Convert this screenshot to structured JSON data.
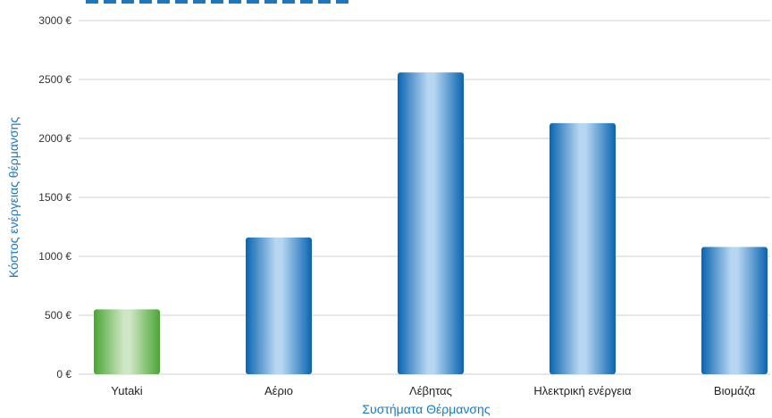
{
  "chart_data": {
    "type": "bar",
    "title": "",
    "xlabel": "Συστήματα Θέρμανσης",
    "ylabel": "Κόστος ενέργειας θέρμανσης",
    "categories": [
      "Yutaki",
      "Αέριο",
      "Λέβητας",
      "Ηλεκτρική ενέργεια",
      "Βιομάζα"
    ],
    "values": [
      550,
      1160,
      2560,
      2130,
      1080
    ],
    "ylim": [
      0,
      3000
    ],
    "yticks": [
      "0 €",
      "500 €",
      "1000 €",
      "1500 €",
      "2000 €",
      "2500 €",
      "3000 €"
    ],
    "grid": true,
    "colors": {
      "highlight": "#4aa534",
      "highlight_light": "#cfe6c4",
      "bar": "#0a64b0",
      "bar_light": "#b6d6f2",
      "axis_title": "#1a78c2"
    }
  }
}
